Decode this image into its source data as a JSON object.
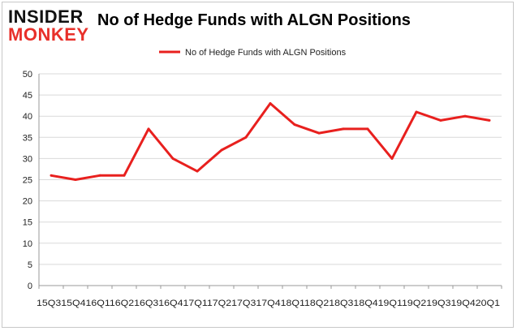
{
  "branding": {
    "logo_line1": "INSIDER",
    "logo_line2": "MONKEY"
  },
  "colors": {
    "line": "#e8201e",
    "grid": "#d9d9d9",
    "axis": "#999999",
    "logo_red": "#e8302a"
  },
  "chart_data": {
    "type": "line",
    "title": "No of Hedge Funds with ALGN Positions",
    "legend": "top-center",
    "grid": true,
    "ylim": [
      0,
      50
    ],
    "yticks": [
      0,
      5,
      10,
      15,
      20,
      25,
      30,
      35,
      40,
      45,
      50
    ],
    "x_axis_text": "15Q315Q416Q116Q216Q316Q417Q117Q217Q317Q418Q118Q218Q318Q419Q119Q219Q319Q420Q1",
    "categories": [
      "15Q3",
      "15Q4",
      "16Q1",
      "16Q2",
      "16Q3",
      "16Q4",
      "17Q1",
      "17Q2",
      "17Q3",
      "17Q4",
      "18Q1",
      "18Q2",
      "18Q3",
      "18Q4",
      "19Q1",
      "19Q2",
      "19Q3",
      "19Q4",
      "20Q1"
    ],
    "series": [
      {
        "name": "No of Hedge Funds with ALGN Positions",
        "values": [
          26,
          25,
          26,
          26,
          37,
          30,
          27,
          32,
          35,
          43,
          38,
          36,
          37,
          37,
          30,
          41,
          39,
          40,
          39
        ]
      }
    ]
  }
}
